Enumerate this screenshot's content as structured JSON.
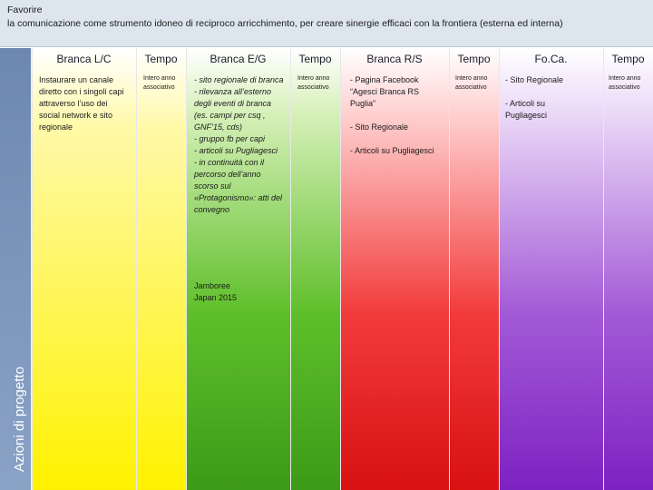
{
  "banner": {
    "line1": "Favorire",
    "line2": "la comunicazione come  strumento idoneo di reciproco arricchimento, per creare sinergie efficaci con la frontiera (esterna ed interna)"
  },
  "side_label": "Azioni di progetto",
  "columns": {
    "lc": {
      "header": "Branca L/C",
      "text": "Instaurare un canale diretto con i singoli capi attraverso l’uso dei social network e sito regionale"
    },
    "lc_tempo": {
      "header": "Tempo",
      "text": "Intero anno associativo"
    },
    "eg": {
      "header": "Branca E/G",
      "lines": [
        "- sito regionale di branca",
        "- rilevanza all’esterno degli eventi di branca (es. campi per csq , GNF’15, cds)",
        "- gruppo fb per capi",
        "- articoli su Pugliagesci",
        "- in continuità con il percorso dell’anno scorso sul «Protagonismo»: atti del convegno"
      ],
      "jamboree": "Jamboree Japan 2015"
    },
    "eg_tempo": {
      "header": "Tempo",
      "text": "Intero anno associativo"
    },
    "rs": {
      "header": "Branca R/S",
      "items": [
        "- Pagina Facebook “Agesci Branca RS Puglia”",
        "- Sito Regionale",
        "- Articoli su Pugliagesci"
      ]
    },
    "rs_tempo": {
      "header": "Tempo",
      "text": "Intero anno associativo"
    },
    "foca": {
      "header": "Fo.Ca.",
      "items": [
        "- Sito Regionale",
        "- Articoli su Pugliagesci"
      ]
    },
    "foca_tempo": {
      "header": "Tempo",
      "text": "Intero anno associativo"
    }
  },
  "colors": {
    "yellow": "#fff200",
    "green": "#4caf1e",
    "red": "#ee1c1c",
    "purple": "#8a2bc9",
    "sidebar": "#7a93ba"
  }
}
